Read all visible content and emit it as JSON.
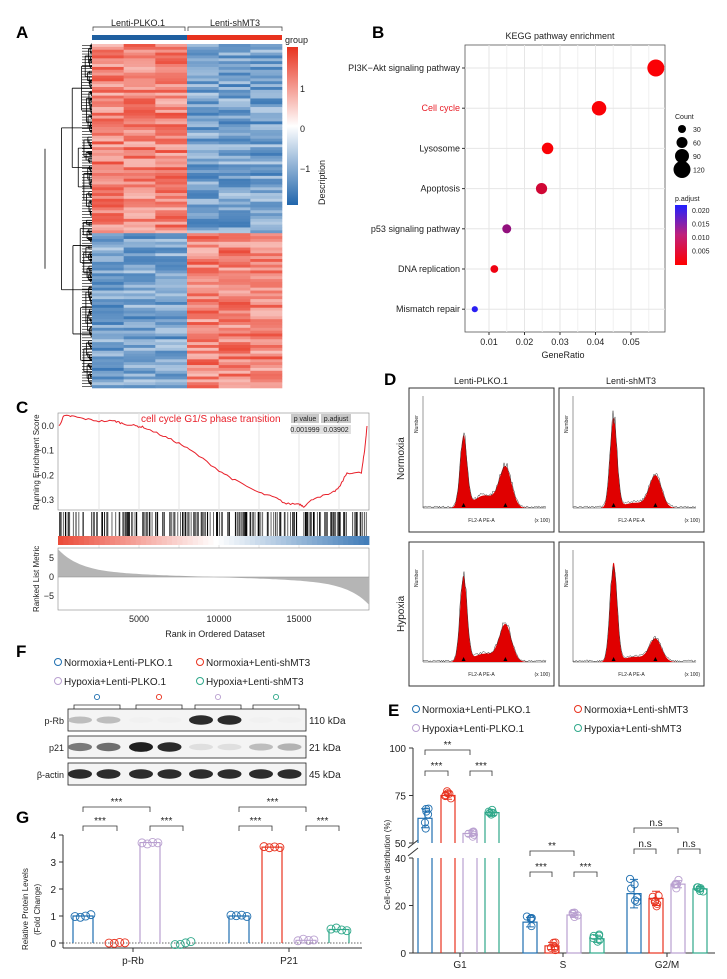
{
  "panel_labels": [
    "A",
    "B",
    "C",
    "D",
    "E",
    "F",
    "G"
  ],
  "chart_data": [
    {
      "panel": "A",
      "type": "heatmap",
      "column_groups": [
        "Lenti-PLKO.1",
        "Lenti-shMT3"
      ],
      "group_colors": [
        "#1f5fa0",
        "#e8321e"
      ],
      "samples_per_group": 3,
      "legend_title": "group",
      "colorbar_ticks": [
        "1",
        "0",
        "−1"
      ],
      "colorbar_colors": [
        "#2166ac",
        "#ffffff",
        "#e8321e"
      ],
      "row_axis_label": "Description",
      "row_clusters": [
        {
          "fraction": 0.55,
          "pattern": "up in Lenti-PLKO.1, down in Lenti-shMT3"
        },
        {
          "fraction": 0.45,
          "pattern": "down in Lenti-PLKO.1, up in Lenti-shMT3"
        }
      ]
    },
    {
      "panel": "B",
      "type": "scatter",
      "title": "KEGG pathway enrichment",
      "xlabel": "GeneRatio",
      "xticks": [
        0.01,
        0.02,
        0.03,
        0.04,
        0.05
      ],
      "xlim": [
        0.0035,
        0.0585
      ],
      "highlight_color": "#e8202a",
      "points": [
        {
          "label": "PI3K−Akt signaling pathway",
          "gene_ratio": 0.057,
          "count": 120,
          "p_adjust": 0.001,
          "highlight": false
        },
        {
          "label": "Cell cycle",
          "gene_ratio": 0.041,
          "count": 95,
          "p_adjust": 0.001,
          "highlight": true
        },
        {
          "label": "Lysosome",
          "gene_ratio": 0.0265,
          "count": 65,
          "p_adjust": 0.001,
          "highlight": false
        },
        {
          "label": "Apoptosis",
          "gene_ratio": 0.0248,
          "count": 62,
          "p_adjust": 0.005,
          "highlight": false
        },
        {
          "label": "p53 signaling pathway",
          "gene_ratio": 0.015,
          "count": 40,
          "p_adjust": 0.011,
          "highlight": false
        },
        {
          "label": "DNA replication",
          "gene_ratio": 0.0115,
          "count": 28,
          "p_adjust": 0.002,
          "highlight": false
        },
        {
          "label": "Mismatch repair",
          "gene_ratio": 0.006,
          "count": 12,
          "p_adjust": 0.021,
          "highlight": false
        }
      ],
      "size_legend": {
        "title": "Count",
        "values": [
          30,
          60,
          90,
          120
        ]
      },
      "color_legend": {
        "title": "p.adjust",
        "ticks": [
          "0.020",
          "0.015",
          "0.010",
          "0.005"
        ],
        "low_color": "#ff0000",
        "high_color": "#2020ff",
        "range": [
          0.0005,
          0.022
        ]
      }
    },
    {
      "panel": "C",
      "type": "line",
      "title": "cell cycle G1/S phase transition",
      "line_color": "#e8202a",
      "ylabel": "Running Enrichment Score",
      "ylabel2": "Ranked List Metric",
      "xlabel": "Rank in Ordered Dataset",
      "xticks": [
        5000,
        10000,
        15000
      ],
      "xlim": [
        0,
        19300
      ],
      "yticks": [
        0.0,
        -0.1,
        -0.2,
        -0.3
      ],
      "yticks_labels": [
        "0.0",
        "−0.1",
        "−0.2",
        "−0.3"
      ],
      "ylim": [
        -0.34,
        0.06
      ],
      "metric_yticks": [
        "5",
        "0",
        "−5"
      ],
      "table": {
        "headers": [
          "p value",
          "p.adjust"
        ],
        "values": [
          "0.001999",
          "0.03902"
        ]
      },
      "x": [
        0,
        300,
        800,
        1500,
        2500,
        3500,
        4000,
        4800,
        5300,
        6500,
        7500,
        8500,
        10000,
        11000,
        12500,
        13500,
        14200,
        15000,
        15300,
        16000,
        17000,
        17500,
        18000,
        18900,
        19100,
        19250
      ],
      "y": [
        0.0,
        0.04,
        0.04,
        0.03,
        0.02,
        0.02,
        0.01,
        0.0,
        -0.005,
        -0.04,
        -0.07,
        -0.11,
        -0.18,
        -0.22,
        -0.27,
        -0.29,
        -0.315,
        -0.315,
        -0.325,
        -0.29,
        -0.275,
        -0.25,
        -0.19,
        -0.19,
        -0.1,
        0.0
      ]
    },
    {
      "panel": "D",
      "type": "histogram",
      "column_titles": [
        "Lenti-PLKO.1",
        "Lenti-shMT3"
      ],
      "row_titles": [
        "Normoxia",
        "Hypoxia"
      ],
      "fill_color": "#e00000",
      "x_axis_label": "FL2-A PE-A",
      "y_axis_label": "Number",
      "x_unit": "(x 100)"
    },
    {
      "panel": "E",
      "type": "bar",
      "ylabel": "Cell-cycle distribution (%)",
      "categories": [
        "G1",
        "S",
        "G2/M"
      ],
      "yticks": [
        "0",
        "20",
        "40",
        "50",
        "75",
        "100"
      ],
      "axis_break": [
        40,
        50
      ],
      "series": [
        {
          "name": "Normoxia+Lenti-PLKO.1",
          "color": "#1f6fb0",
          "values": [
            63,
            13,
            25
          ],
          "sd": [
            5,
            2,
            6
          ]
        },
        {
          "name": "Normoxia+Lenti-shMT3",
          "color": "#e8321e",
          "values": [
            75,
            3,
            23
          ],
          "sd": [
            2,
            1.5,
            3
          ]
        },
        {
          "name": "Hypoxia+Lenti-PLKO.1",
          "color": "#b9a0d0",
          "values": [
            55,
            16,
            29
          ],
          "sd": [
            1.5,
            1,
            1.5
          ]
        },
        {
          "name": "Hypoxia+Lenti-shMT3",
          "color": "#2fa88a",
          "values": [
            66,
            6,
            27
          ],
          "sd": [
            1.5,
            1.5,
            1
          ]
        }
      ],
      "significance": [
        {
          "category": "G1",
          "pair": [
            0,
            1
          ],
          "label": "***",
          "level": 1
        },
        {
          "category": "G1",
          "pair": [
            2,
            3
          ],
          "label": "***",
          "level": 1
        },
        {
          "category": "G1",
          "pair": [
            0,
            2
          ],
          "label": "**",
          "level": 2
        },
        {
          "category": "S",
          "pair": [
            0,
            1
          ],
          "label": "***",
          "level": 1
        },
        {
          "category": "S",
          "pair": [
            2,
            3
          ],
          "label": "***",
          "level": 1
        },
        {
          "category": "S",
          "pair": [
            0,
            2
          ],
          "label": "**",
          "level": 2
        },
        {
          "category": "G2/M",
          "pair": [
            0,
            1
          ],
          "label": "n.s",
          "level": 1
        },
        {
          "category": "G2/M",
          "pair": [
            2,
            3
          ],
          "label": "n.s",
          "level": 1
        },
        {
          "category": "G2/M",
          "pair": [
            0,
            2
          ],
          "label": "n.s",
          "level": 2
        }
      ]
    },
    {
      "panel": "F",
      "type": "western_blot",
      "legend": [
        "Normoxia+Lenti-PLKO.1",
        "Normoxia+Lenti-shMT3",
        "Hypoxia+Lenti-PLKO.1",
        "Hypoxia+Lenti-shMT3"
      ],
      "legend_colors": [
        "#1f6fb0",
        "#e8321e",
        "#b9a0d0",
        "#2fa88a"
      ],
      "bands": [
        {
          "protein": "p-Rb",
          "size": "110 kDa",
          "intensity": [
            0.25,
            0.25,
            0.02,
            0.02,
            0.9,
            0.9,
            0.02,
            0.02
          ]
        },
        {
          "protein": "p21",
          "size": "21 kDa",
          "intensity": [
            0.55,
            0.6,
            0.95,
            0.9,
            0.1,
            0.1,
            0.25,
            0.3
          ]
        },
        {
          "protein": "β-actin",
          "size": "45 kDa",
          "intensity": [
            0.9,
            0.9,
            0.9,
            0.9,
            0.9,
            0.9,
            0.9,
            0.9
          ]
        }
      ]
    },
    {
      "panel": "G",
      "type": "bar",
      "ylabel": "Relative Protein Levels",
      "ylabel2": "(Fold Change)",
      "categories": [
        "p-Rb",
        "P21"
      ],
      "yticks": [
        "0",
        "1",
        "2",
        "3",
        "4"
      ],
      "ylim": [
        0,
        4
      ],
      "series": [
        {
          "name": "Normoxia+Lenti-PLKO.1",
          "color": "#1f6fb0",
          "values": [
            1.0,
            1.0
          ]
        },
        {
          "name": "Normoxia+Lenti-shMT3",
          "color": "#e8321e",
          "values": [
            0.0,
            3.55
          ]
        },
        {
          "name": "Hypoxia+Lenti-PLKO.1",
          "color": "#b9a0d0",
          "values": [
            3.72,
            0.1
          ]
        },
        {
          "name": "Hypoxia+Lenti-shMT3",
          "color": "#2fa88a",
          "values": [
            0.0,
            0.5
          ]
        }
      ],
      "significance": [
        {
          "category": "p-Rb",
          "pair": [
            0,
            1
          ],
          "label": "***",
          "level": 1
        },
        {
          "category": "p-Rb",
          "pair": [
            2,
            3
          ],
          "label": "***",
          "level": 1
        },
        {
          "category": "p-Rb",
          "pair": [
            0,
            2
          ],
          "label": "***",
          "level": 2
        },
        {
          "category": "P21",
          "pair": [
            0,
            1
          ],
          "label": "***",
          "level": 1
        },
        {
          "category": "P21",
          "pair": [
            2,
            3
          ],
          "label": "***",
          "level": 1
        },
        {
          "category": "P21",
          "pair": [
            0,
            2
          ],
          "label": "***",
          "level": 2
        }
      ]
    }
  ]
}
